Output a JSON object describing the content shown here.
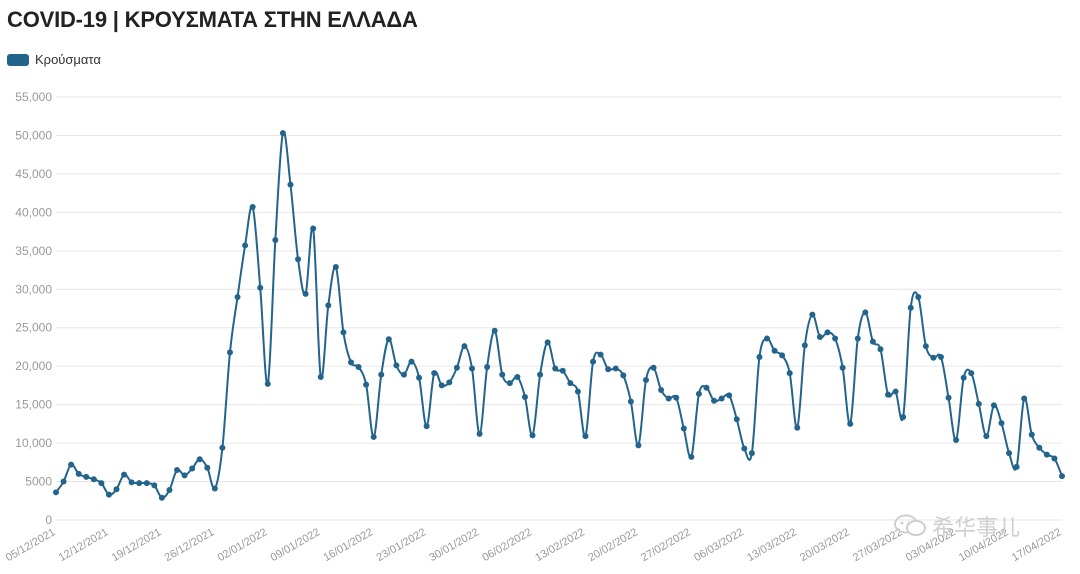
{
  "chart_data": {
    "type": "line",
    "title": "COVID-19 | ΚΡΟΥΣΜΑΤΑ ΣΤΗΝ ΕΛΛΑΔΑ",
    "xlabel": "",
    "ylabel": "",
    "ylim": [
      0,
      55000
    ],
    "yticks": [
      0,
      5000,
      10000,
      15000,
      20000,
      25000,
      30000,
      35000,
      40000,
      45000,
      50000,
      55000
    ],
    "ytick_labels": [
      "0",
      "5000",
      "10,000",
      "15,000",
      "20,000",
      "25,000",
      "30,000",
      "35,000",
      "40,000",
      "45,000",
      "50,000",
      "55,000"
    ],
    "xtick_labels": [
      "05/12/2021",
      "12/12/2021",
      "19/12/2021",
      "26/12/2021",
      "02/01/2022",
      "09/01/2022",
      "16/01/2022",
      "23/01/2022",
      "30/01/2022",
      "06/02/2022",
      "13/02/2022",
      "20/02/2022",
      "27/02/2022",
      "06/03/2022",
      "13/03/2022",
      "20/03/2022",
      "27/03/2022",
      "03/04/2022",
      "10/04/2022",
      "17/04/2022"
    ],
    "x_start": "05/12/2021",
    "x_end": "17/04/2022",
    "grid": true,
    "legend_position": "top-left",
    "series": [
      {
        "name": "Κρούσματα",
        "color": "#23648c",
        "values": [
          3600,
          5000,
          7200,
          6000,
          5600,
          5300,
          4800,
          3300,
          4000,
          5900,
          4900,
          4800,
          4800,
          4500,
          2900,
          3900,
          6500,
          5800,
          6700,
          7900,
          6800,
          4100,
          9400,
          21800,
          29000,
          35700,
          40700,
          30200,
          17700,
          36400,
          50300,
          43600,
          33900,
          29400,
          37900,
          18600,
          27900,
          32900,
          24400,
          20500,
          19900,
          17600,
          10800,
          18900,
          23500,
          20100,
          18900,
          20600,
          18500,
          12200,
          19100,
          17500,
          17900,
          19800,
          22600,
          19700,
          11200,
          19900,
          24600,
          18900,
          17800,
          18600,
          16000,
          11000,
          18900,
          23100,
          19700,
          19400,
          17800,
          16700,
          10900,
          20600,
          21500,
          19600,
          19700,
          18800,
          15400,
          9700,
          18200,
          19800,
          16900,
          15800,
          15900,
          11900,
          8200,
          16400,
          17200,
          15500,
          15800,
          16200,
          13100,
          9300,
          8700,
          21200,
          23600,
          22000,
          21400,
          19100,
          12000,
          22700,
          26700,
          23800,
          24400,
          23600,
          19800,
          12500,
          23600,
          27000,
          23200,
          22200,
          16300,
          16700,
          13400,
          27600,
          29000,
          22600,
          21100,
          21200,
          15900,
          10400,
          18500,
          19100,
          15100,
          10900,
          14900,
          12600,
          8700,
          6900,
          15800,
          11100,
          9400,
          8500,
          8000,
          5700
        ]
      }
    ]
  },
  "watermark": {
    "text": "希华事儿"
  }
}
